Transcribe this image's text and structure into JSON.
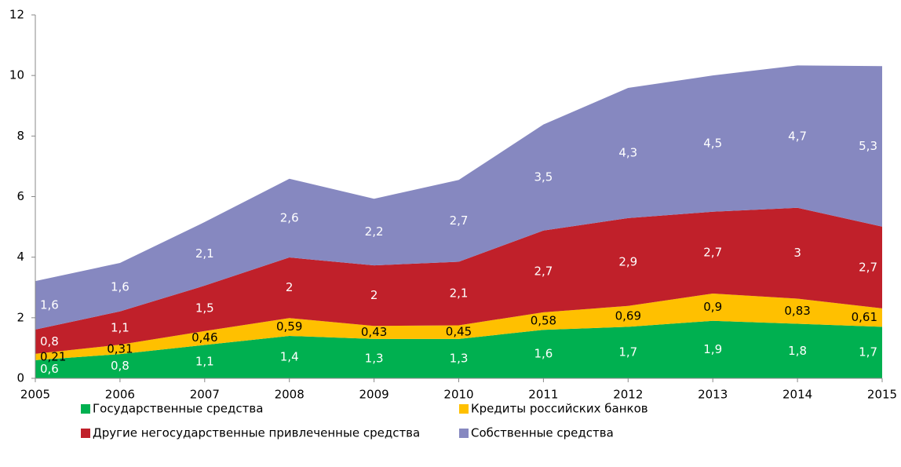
{
  "chart_data": {
    "type": "stacked-area",
    "x": [
      2005,
      2006,
      2007,
      2008,
      2009,
      2010,
      2011,
      2012,
      2013,
      2014,
      2015
    ],
    "xlim": [
      2005,
      2015
    ],
    "xticks": [
      2005,
      2006,
      2007,
      2008,
      2009,
      2010,
      2011,
      2012,
      2013,
      2014,
      2015
    ],
    "ylim": [
      0,
      12
    ],
    "yticks": [
      0,
      2,
      4,
      6,
      8,
      10,
      12
    ],
    "grid": false,
    "legend": "bottom",
    "series": [
      {
        "name": "Государственные средства",
        "color": "#00b050",
        "label_color": "#ffffff",
        "values": [
          0.6,
          0.8,
          1.1,
          1.4,
          1.3,
          1.3,
          1.6,
          1.7,
          1.9,
          1.8,
          1.7
        ],
        "value_labels": [
          "0,6",
          "0,8",
          "1,1",
          "1,4",
          "1,3",
          "1,3",
          "1,6",
          "1,7",
          "1,9",
          "1,8",
          "1,7"
        ]
      },
      {
        "name": "Кредиты российских банков",
        "color": "#ffc000",
        "label_color": "#000000",
        "values": [
          0.21,
          0.31,
          0.46,
          0.59,
          0.43,
          0.45,
          0.58,
          0.69,
          0.9,
          0.83,
          0.61
        ],
        "value_labels": [
          "0,21",
          "0,31",
          "0,46",
          "0,59",
          "0,43",
          "0,45",
          "0,58",
          "0,69",
          "0,9",
          "0,83",
          "0,61"
        ]
      },
      {
        "name": "Другие негосударственные привлеченные средства",
        "color": "#c0202a",
        "label_color": "#ffffff",
        "values": [
          0.8,
          1.1,
          1.5,
          2,
          2,
          2.1,
          2.7,
          2.9,
          2.7,
          3,
          2.7
        ],
        "value_labels": [
          "0,8",
          "1,1",
          "1,5",
          "2",
          "2",
          "2,1",
          "2,7",
          "2,9",
          "2,7",
          "3",
          "2,7"
        ]
      },
      {
        "name": "Собственные средства",
        "color": "#8688c0",
        "label_color": "#ffffff",
        "values": [
          1.6,
          1.6,
          2.1,
          2.6,
          2.2,
          2.7,
          3.5,
          4.3,
          4.5,
          4.7,
          5.3
        ],
        "value_labels": [
          "1,6",
          "1,6",
          "2,1",
          "2,6",
          "2,2",
          "2,7",
          "3,5",
          "4,3",
          "4,5",
          "4,7",
          "5,3"
        ]
      }
    ]
  }
}
